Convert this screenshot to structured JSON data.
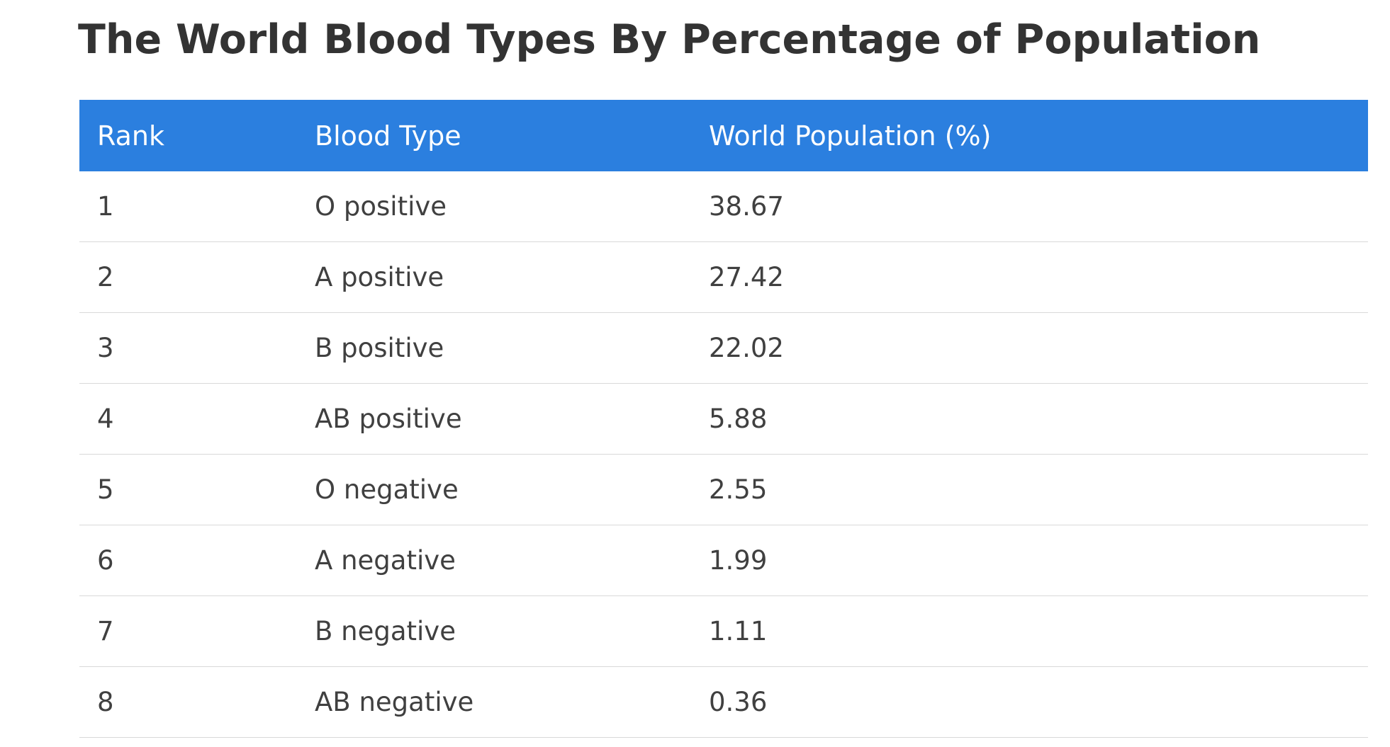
{
  "page": {
    "title": "The World Blood Types By Percentage of Population"
  },
  "table": {
    "header_color": "#2b7fdf",
    "columns": [
      "Rank",
      "Blood Type",
      "World Population (%)"
    ],
    "rows": [
      [
        "1",
        "O positive",
        "38.67"
      ],
      [
        "2",
        "A positive",
        "27.42"
      ],
      [
        "3",
        "B positive",
        "22.02"
      ],
      [
        "4",
        "AB positive",
        "5.88"
      ],
      [
        "5",
        "O negative",
        "2.55"
      ],
      [
        "6",
        "A negative",
        "1.99"
      ],
      [
        "7",
        "B negative",
        "1.11"
      ],
      [
        "8",
        "AB negative",
        "0.36"
      ]
    ]
  }
}
